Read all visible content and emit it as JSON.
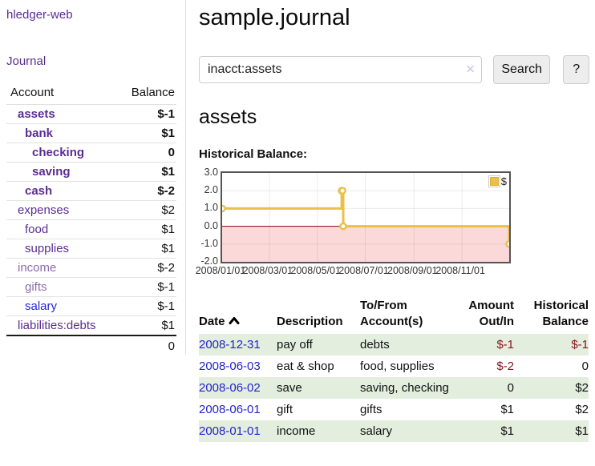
{
  "sidebar": {
    "app_title": "hledger-web",
    "nav": [
      {
        "label": "Journal"
      }
    ],
    "accounts_table": {
      "headers": {
        "account": "Account",
        "balance": "Balance"
      },
      "rows": [
        {
          "name": "assets",
          "depth": 0,
          "balance": "$-1",
          "emph": true,
          "name_tone": "purple",
          "bal_tone": "negative-strong"
        },
        {
          "name": "bank",
          "depth": 1,
          "balance": "$1",
          "emph": true,
          "name_tone": "purple",
          "bal_tone": "normal"
        },
        {
          "name": "checking",
          "depth": 2,
          "balance": "0",
          "emph": true,
          "name_tone": "purple",
          "bal_tone": "normal"
        },
        {
          "name": "saving",
          "depth": 2,
          "balance": "$1",
          "emph": true,
          "name_tone": "purple",
          "bal_tone": "normal"
        },
        {
          "name": "cash",
          "depth": 1,
          "balance": "$-2",
          "emph": true,
          "name_tone": "purple",
          "bal_tone": "negative-strong"
        },
        {
          "name": "expenses",
          "depth": 0,
          "balance": "$2",
          "emph": false,
          "name_tone": "purple",
          "bal_tone": "normal"
        },
        {
          "name": "food",
          "depth": 1,
          "balance": "$1",
          "emph": false,
          "name_tone": "purple",
          "bal_tone": "normal"
        },
        {
          "name": "supplies",
          "depth": 1,
          "balance": "$1",
          "emph": false,
          "name_tone": "purple",
          "bal_tone": "normal"
        },
        {
          "name": "income",
          "depth": 0,
          "balance": "$-2",
          "emph": false,
          "name_tone": "muted",
          "bal_tone": "negative-soft"
        },
        {
          "name": "gifts",
          "depth": 1,
          "balance": "$-1",
          "emph": false,
          "name_tone": "muted",
          "bal_tone": "negative-soft"
        },
        {
          "name": "salary",
          "depth": 1,
          "balance": "$-1",
          "emph": false,
          "name_tone": "blue",
          "bal_tone": "negative-soft"
        },
        {
          "name": "liabilities:debts",
          "depth": 0,
          "balance": "$1",
          "emph": false,
          "name_tone": "purple",
          "bal_tone": "normal"
        }
      ],
      "total": "0"
    }
  },
  "header": {
    "title": "sample.journal"
  },
  "search": {
    "value": "inacct:assets",
    "clear_icon": "✕",
    "button_label": "Search",
    "help_label": "?"
  },
  "account_page": {
    "heading": "assets",
    "chart_label": "Historical Balance:"
  },
  "chart_data": {
    "type": "line",
    "title": "Historical Balance:",
    "step": true,
    "series": [
      {
        "name": "$",
        "color": "#e8c04a",
        "points": [
          [
            "2008-01-01",
            1
          ],
          [
            "2008-06-01",
            2
          ],
          [
            "2008-06-02",
            2
          ],
          [
            "2008-06-03",
            0
          ],
          [
            "2008-12-31",
            -1
          ]
        ]
      }
    ],
    "x_range": [
      "2008-01-01",
      "2008-12-31"
    ],
    "ylim": [
      -2,
      3
    ],
    "y_ticks": [
      "3.0",
      "2.0",
      "1.0",
      "0.0",
      "-1.0",
      "-2.0"
    ],
    "x_ticks": [
      "2008/01/01",
      "2008/03/01",
      "2008/05/01",
      "2008/07/01",
      "2008/09/01",
      "2008/11/01"
    ],
    "grid": true,
    "legend_position": "top-right",
    "negative_fill": "#fbd9d9",
    "zero_line_color": "#8b0000"
  },
  "register": {
    "headers": [
      {
        "line1": "Date",
        "line2": ""
      },
      {
        "line1": "Description",
        "line2": ""
      },
      {
        "line1": "To/From",
        "line2": "Account(s)"
      },
      {
        "line1": "Amount",
        "line2": "Out/In"
      },
      {
        "line1": "Historical",
        "line2": "Balance"
      }
    ],
    "rows": [
      {
        "date": "2008-12-31",
        "description": "pay off",
        "accounts": "debts",
        "amount": "$-1",
        "balance": "$-1"
      },
      {
        "date": "2008-06-03",
        "description": "eat & shop",
        "accounts": "food, supplies",
        "amount": "$-2",
        "balance": "0"
      },
      {
        "date": "2008-06-02",
        "description": "save",
        "accounts": "saving, checking",
        "amount": "0",
        "balance": "$2"
      },
      {
        "date": "2008-06-01",
        "description": "gift",
        "accounts": "gifts",
        "amount": "$1",
        "balance": "$2"
      },
      {
        "date": "2008-01-01",
        "description": "income",
        "accounts": "salary",
        "amount": "$1",
        "balance": "$1"
      }
    ]
  },
  "colors": {
    "accent_purple": "#5b2d91",
    "muted_purple": "#8d6cab",
    "link_blue": "#2323cc",
    "negative_strong": "#871520",
    "negative_soft": "#b4646c",
    "stripe_green": "#e3eede",
    "chart_gold": "#e8c04a",
    "chart_negative_fill": "#fbd9d9",
    "chart_zero_line": "#8b0000"
  }
}
